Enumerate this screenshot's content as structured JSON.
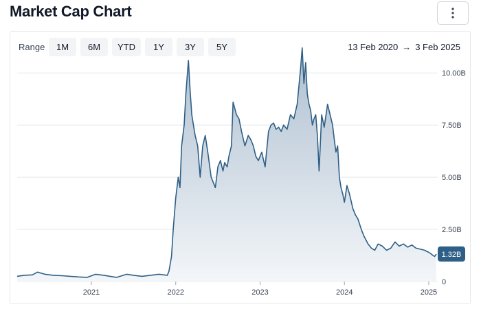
{
  "header": {
    "title": "Market Cap Chart",
    "menu_icon": "more-vertical-icon"
  },
  "controls": {
    "range_label": "Range",
    "range_buttons": [
      "1M",
      "6M",
      "YTD",
      "1Y",
      "3Y",
      "5Y"
    ],
    "date_start": "13 Feb 2020",
    "date_arrow": "→",
    "date_end": "3 Feb 2025"
  },
  "colors": {
    "line": "#2e5f86",
    "fill_top": "#aebfd0",
    "fill_bottom": "#f3f6f9",
    "badge": "#2e5f86",
    "grid": "#e5e7eb"
  },
  "chart_data": {
    "type": "area",
    "xlabel": "",
    "ylabel": "",
    "ylim": [
      0,
      10.5
    ],
    "unit": "B",
    "y_ticks": [
      0,
      2.5,
      5,
      7.5,
      10
    ],
    "y_tick_labels": [
      "0",
      "2.50B",
      "5.00B",
      "7.50B",
      "10.00B"
    ],
    "x_ticks": [
      2021,
      2022,
      2023,
      2024,
      2025
    ],
    "x_tick_labels": [
      "2021",
      "2022",
      "2023",
      "2024",
      "2025"
    ],
    "grid": true,
    "last_value_label": "1.32B",
    "last_value": 1.32,
    "series": [
      {
        "x": [
          2020.12,
          2020.2,
          2020.3,
          2020.36,
          2020.45,
          2020.55,
          2020.65,
          2020.75,
          2020.85,
          2020.95,
          2021.05,
          2021.15,
          2021.22,
          2021.3,
          2021.38,
          2021.42,
          2021.5,
          2021.6,
          2021.7,
          2021.8,
          2021.9,
          2021.92,
          2021.95,
          2021.97,
          2022.0,
          2022.03,
          2022.05,
          2022.07,
          2022.1,
          2022.12,
          2022.15,
          2022.17,
          2022.19,
          2022.21,
          2022.23,
          2022.26,
          2022.29,
          2022.32,
          2022.35,
          2022.38,
          2022.42,
          2022.45,
          2022.47,
          2022.5,
          2022.53,
          2022.56,
          2022.58,
          2022.61,
          2022.63,
          2022.66,
          2022.68,
          2022.72,
          2022.75,
          2022.78,
          2022.82,
          2022.86,
          2022.89,
          2022.92,
          2022.95,
          2022.98,
          2023.02,
          2023.06,
          2023.1,
          2023.13,
          2023.16,
          2023.19,
          2023.22,
          2023.25,
          2023.28,
          2023.32,
          2023.36,
          2023.4,
          2023.44,
          2023.48,
          2023.5,
          2023.52,
          2023.54,
          2023.56,
          2023.58,
          2023.6,
          2023.62,
          2023.64,
          2023.66,
          2023.68,
          2023.7,
          2023.73,
          2023.76,
          2023.8,
          2023.83,
          2023.86,
          2023.88,
          2023.9,
          2023.92,
          2023.94,
          2023.96,
          2023.98,
          2024.0,
          2024.03,
          2024.06,
          2024.1,
          2024.13,
          2024.16,
          2024.2,
          2024.23,
          2024.28,
          2024.32,
          2024.36,
          2024.4,
          2024.45,
          2024.5,
          2024.55,
          2024.6,
          2024.65,
          2024.7,
          2024.75,
          2024.8,
          2024.85,
          2024.9,
          2024.95,
          2025.0,
          2025.02,
          2025.05,
          2025.07,
          2025.09
        ],
        "values": [
          0.25,
          0.3,
          0.32,
          0.45,
          0.35,
          0.3,
          0.28,
          0.25,
          0.22,
          0.2,
          0.35,
          0.3,
          0.25,
          0.2,
          0.3,
          0.35,
          0.3,
          0.25,
          0.3,
          0.35,
          0.3,
          0.5,
          1.2,
          2.5,
          4.0,
          5.0,
          4.5,
          6.5,
          7.5,
          9.0,
          10.6,
          9.2,
          8.0,
          7.5,
          7.0,
          6.5,
          5.0,
          6.5,
          7.0,
          6.2,
          5.0,
          4.7,
          4.5,
          5.5,
          5.8,
          5.3,
          5.7,
          5.5,
          6.0,
          6.5,
          8.6,
          8.0,
          7.8,
          7.2,
          6.5,
          7.0,
          6.8,
          6.5,
          6.0,
          5.8,
          6.2,
          5.5,
          7.2,
          7.5,
          7.6,
          7.3,
          7.4,
          7.2,
          7.5,
          7.3,
          8.0,
          7.8,
          8.5,
          10.2,
          11.2,
          9.5,
          10.5,
          9.0,
          8.5,
          8.2,
          7.5,
          7.8,
          8.0,
          7.0,
          5.3,
          8.0,
          7.4,
          8.5,
          8.0,
          7.5,
          6.8,
          6.2,
          6.5,
          5.0,
          4.5,
          4.2,
          3.8,
          4.6,
          4.2,
          3.5,
          3.2,
          3.0,
          2.5,
          2.2,
          1.8,
          1.6,
          1.5,
          1.8,
          1.7,
          1.5,
          1.6,
          1.9,
          1.7,
          1.8,
          1.65,
          1.75,
          1.6,
          1.55,
          1.5,
          1.4,
          1.35,
          1.25,
          1.2,
          1.32
        ]
      }
    ]
  }
}
